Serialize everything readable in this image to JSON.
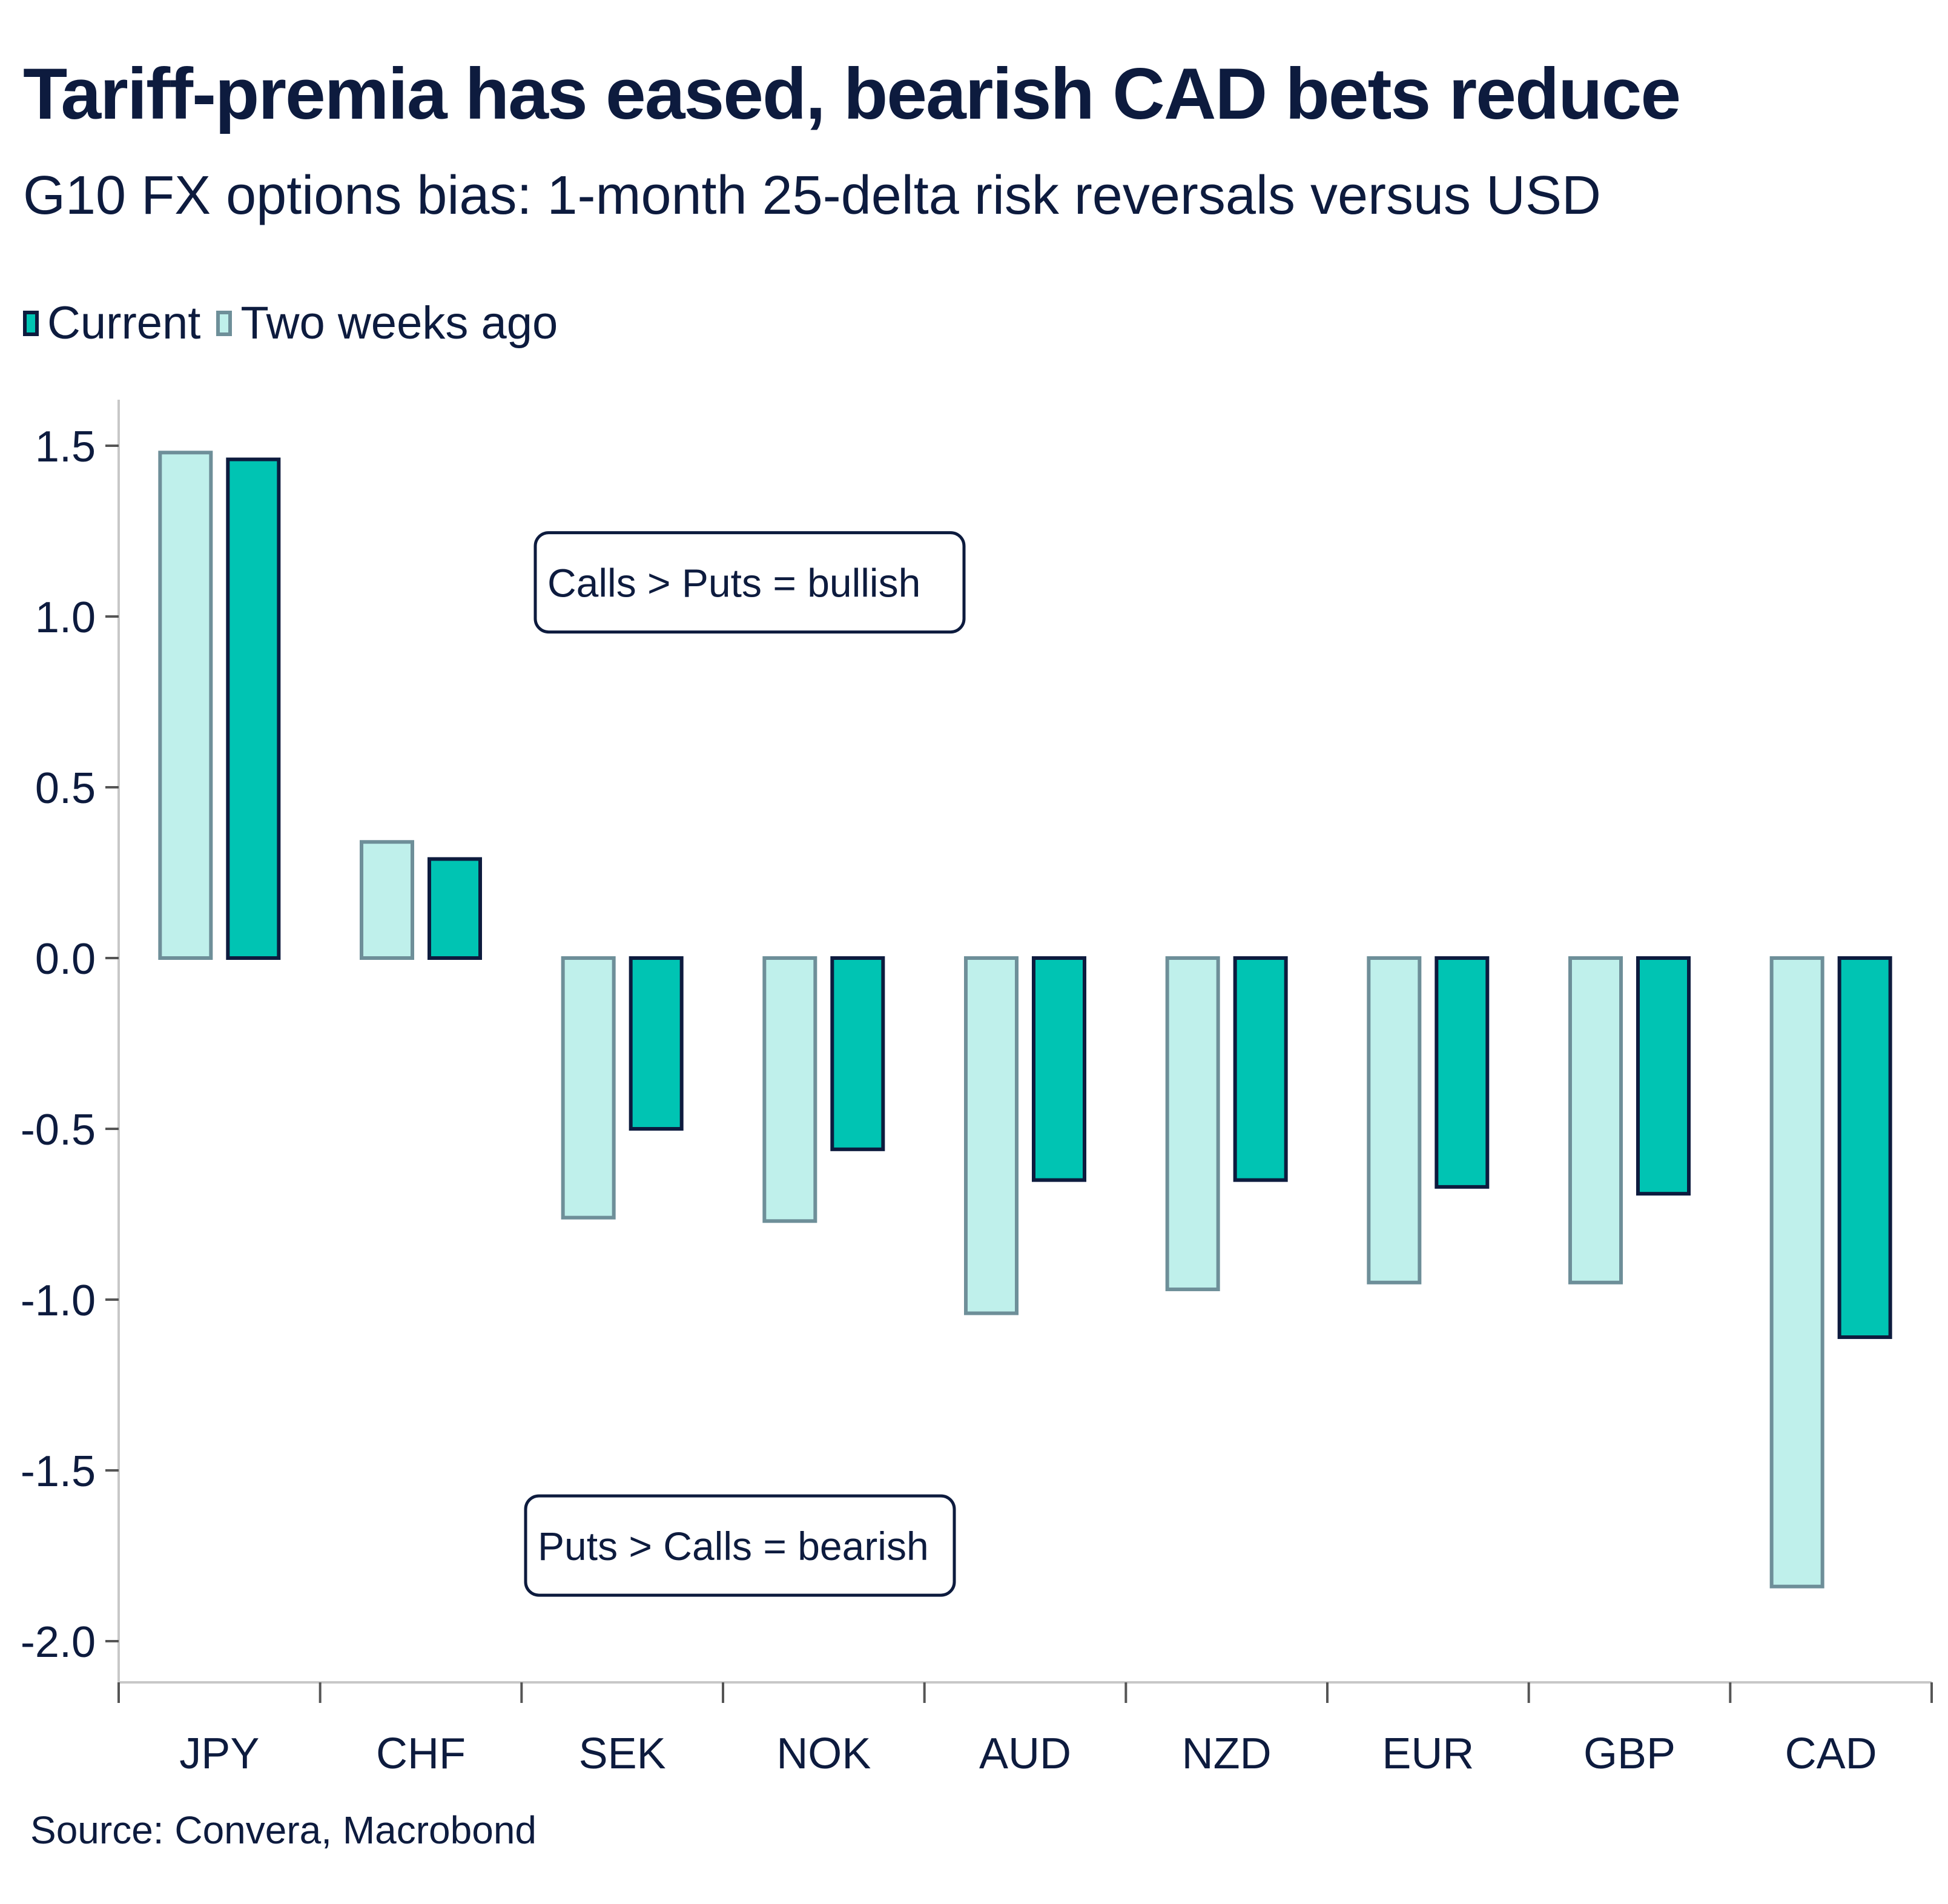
{
  "title": "Tariff-premia has eased, bearish CAD bets reduce",
  "subtitle": "G10 FX options bias: 1-month 25-delta risk reversals versus USD",
  "source": "Source: Convera, Macrobond",
  "colors": {
    "current_fill": "#00c4b3",
    "current_stroke": "#0d1b3e",
    "prior_fill": "#bff0eb",
    "prior_stroke": "#6e8f99",
    "axis": "#c8c8c8",
    "text": "#0d1b3e"
  },
  "chart_data": {
    "type": "bar",
    "categories": [
      "JPY",
      "CHF",
      "SEK",
      "NOK",
      "AUD",
      "NZD",
      "EUR",
      "GBP",
      "CAD"
    ],
    "series": [
      {
        "name": "Two weeks ago",
        "values": [
          1.48,
          0.34,
          -0.76,
          -0.77,
          -1.04,
          -0.97,
          -0.95,
          -0.95,
          -1.84
        ]
      },
      {
        "name": "Current",
        "values": [
          1.46,
          0.29,
          -0.5,
          -0.56,
          -0.65,
          -0.65,
          -0.67,
          -0.69,
          -1.11
        ]
      }
    ],
    "ylim": [
      -2.1,
      1.62
    ],
    "yticks": [
      "1.5",
      "1.0",
      "0.5",
      "0.0",
      "-0.5",
      "-1.0",
      "-1.5",
      "-2.0"
    ],
    "legend": [
      "Current",
      "Two weeks ago"
    ],
    "legend_position": "top-left",
    "grid": false,
    "annotations": [
      {
        "text": "Calls > Puts = bullish",
        "y": 1.1,
        "x_category": "SEK"
      },
      {
        "text": "Puts > Calls = bearish",
        "y": -1.72,
        "x_category": "SEK"
      }
    ]
  }
}
